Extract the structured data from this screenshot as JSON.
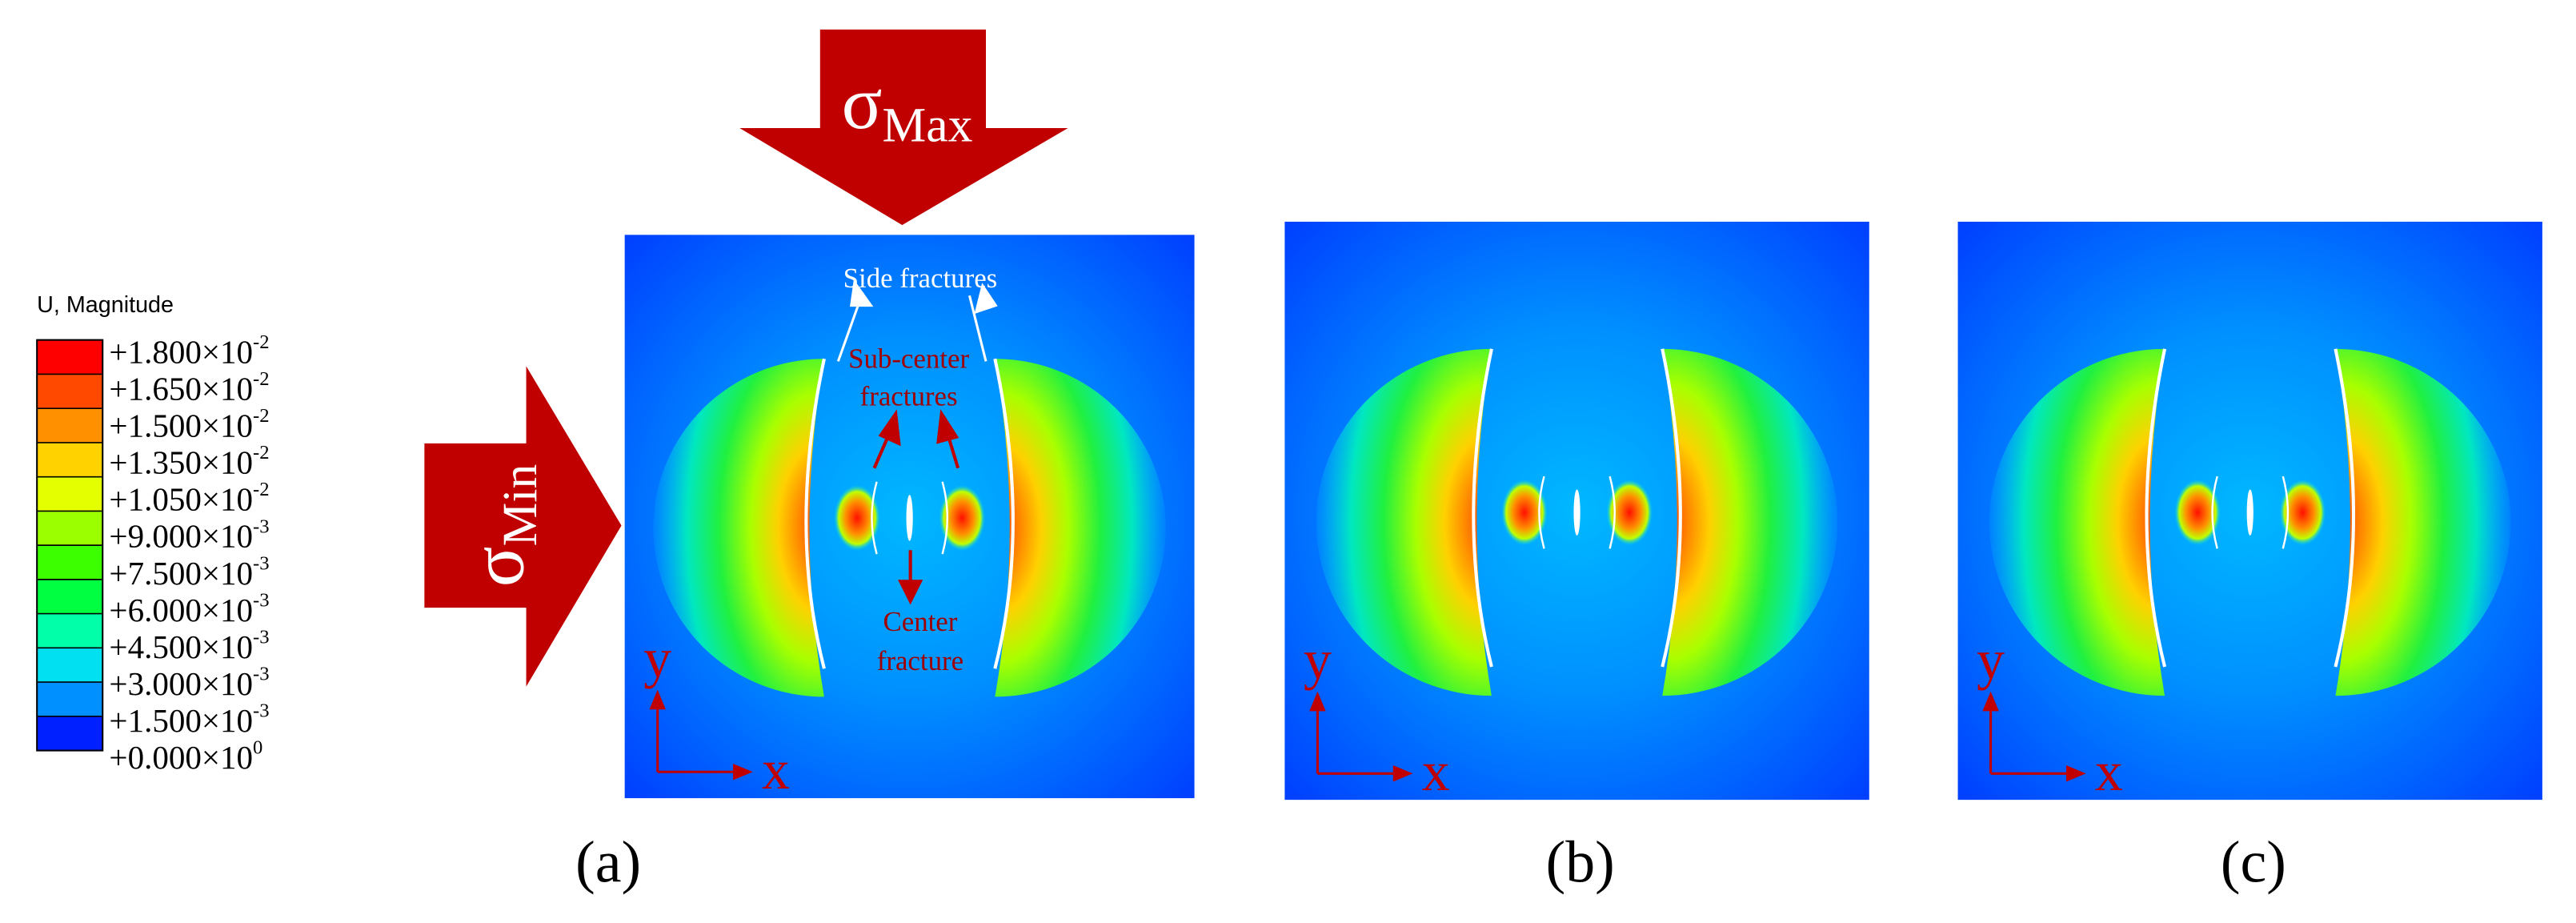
{
  "legend": {
    "title": "U, Magnitude",
    "labels": [
      {
        "base": "+1.800×10",
        "exp": "-2"
      },
      {
        "base": "+1.650×10",
        "exp": "-2"
      },
      {
        "base": "+1.500×10",
        "exp": "-2"
      },
      {
        "base": "+1.350×10",
        "exp": "-2"
      },
      {
        "base": "+1.050×10",
        "exp": "-2"
      },
      {
        "base": "+9.000×10",
        "exp": "-3"
      },
      {
        "base": "+7.500×10",
        "exp": "-3"
      },
      {
        "base": "+6.000×10",
        "exp": "-3"
      },
      {
        "base": "+4.500×10",
        "exp": "-3"
      },
      {
        "base": "+3.000×10",
        "exp": "-3"
      },
      {
        "base": "+1.500×10",
        "exp": "-3"
      },
      {
        "base": "+0.000×10",
        "exp": "0"
      }
    ],
    "colors": [
      "#ff0000",
      "#ff4800",
      "#ff9000",
      "#ffd200",
      "#e4ff00",
      "#9cff00",
      "#3cff00",
      "#00ff40",
      "#00ffa8",
      "#00e0f0",
      "#0090ff",
      "#0020ff"
    ]
  },
  "loads": {
    "max": {
      "symbol": "σ",
      "subscript": "Max"
    },
    "min": {
      "symbol": "σ",
      "subscript": "Min"
    }
  },
  "annotations": {
    "side": "Side fractures",
    "sub_center": [
      "Sub-center",
      "fractures"
    ],
    "center": [
      "Center",
      "fracture"
    ]
  },
  "panels": [
    {
      "label": "(a)",
      "axis_x": "x",
      "axis_y": "y"
    },
    {
      "label": "(b)",
      "axis_x": "x",
      "axis_y": "y"
    },
    {
      "label": "(c)",
      "axis_x": "x",
      "axis_y": "y"
    }
  ]
}
